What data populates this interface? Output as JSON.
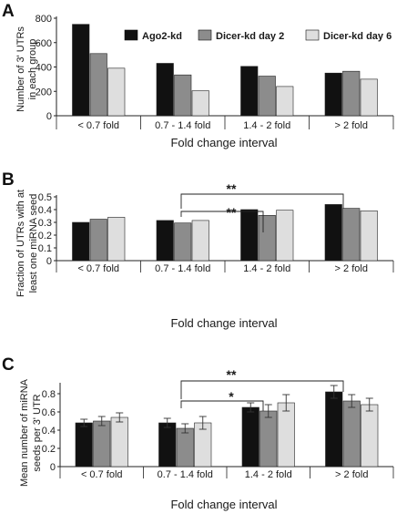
{
  "chart_data": [
    {
      "panel": "A",
      "type": "bar",
      "categories": [
        "< 0.7 fold",
        "0.7 - 1.4 fold",
        "1.4 - 2 fold",
        "> 2 fold"
      ],
      "series": [
        {
          "name": "Ago2-kd",
          "values": [
            750,
            430,
            405,
            350
          ],
          "color": "#111111"
        },
        {
          "name": "Dicer-kd day 2",
          "values": [
            510,
            335,
            325,
            365
          ],
          "color": "#8c8c8c"
        },
        {
          "name": "Dicer-kd day 6",
          "values": [
            390,
            205,
            240,
            300
          ],
          "color": "#dedede"
        }
      ],
      "xlabel": "Fold change interval",
      "ylabel": [
        "Number of 3' UTRs",
        "in each group"
      ],
      "ylim": [
        0,
        800
      ],
      "yticks": [
        "0",
        "200",
        "400",
        "600",
        "800"
      ],
      "legend": "top-right",
      "grid": false
    },
    {
      "panel": "B",
      "type": "bar",
      "categories": [
        "< 0.7 fold",
        "0.7 - 1.4 fold",
        "1.4 - 2 fold",
        "> 2 fold"
      ],
      "series": [
        {
          "name": "Ago2-kd",
          "values": [
            0.3,
            0.315,
            0.4,
            0.44
          ],
          "color": "#111111"
        },
        {
          "name": "Dicer-kd day 2",
          "values": [
            0.325,
            0.295,
            0.355,
            0.41
          ],
          "color": "#8c8c8c"
        },
        {
          "name": "Dicer-kd day 6",
          "values": [
            0.34,
            0.315,
            0.395,
            0.39
          ],
          "color": "#dedede"
        }
      ],
      "xlabel": "Fold change interval",
      "ylabel": [
        "Fraction of UTRs with at",
        "least one miRNA seed"
      ],
      "ylim": [
        0,
        0.5
      ],
      "yticks": [
        "0",
        "0.1",
        "0.2",
        "0.3",
        "0.4",
        "0.5"
      ],
      "annotations": [
        "**",
        "**"
      ],
      "grid": false
    },
    {
      "panel": "C",
      "type": "bar",
      "categories": [
        "< 0.7 fold",
        "0.7 - 1.4 fold",
        "1.4 - 2 fold",
        "> 2 fold"
      ],
      "series": [
        {
          "name": "Ago2-kd",
          "values": [
            0.48,
            0.48,
            0.65,
            0.82
          ],
          "errors": [
            0.04,
            0.05,
            0.05,
            0.07
          ],
          "color": "#111111"
        },
        {
          "name": "Dicer-kd day 2",
          "values": [
            0.5,
            0.42,
            0.61,
            0.72
          ],
          "errors": [
            0.05,
            0.05,
            0.07,
            0.07
          ],
          "color": "#8c8c8c"
        },
        {
          "name": "Dicer-kd day 6",
          "values": [
            0.54,
            0.48,
            0.7,
            0.68
          ],
          "errors": [
            0.05,
            0.07,
            0.09,
            0.07
          ],
          "color": "#dedede"
        }
      ],
      "xlabel": "Fold change interval",
      "ylabel": [
        "Mean number of miRNA",
        "seeds per 3' UTR"
      ],
      "ylim": [
        0,
        0.9
      ],
      "yticks": [
        "0",
        "0.2",
        "0.4",
        "0.6",
        "0.8"
      ],
      "annotations": [
        "**",
        "*"
      ],
      "grid": false
    }
  ],
  "panels": {
    "a": {
      "letter": "A",
      "xlabel": "Fold change interval",
      "ylabel1": "Number of 3' UTRs",
      "ylabel2": "in each group"
    },
    "b": {
      "letter": "B",
      "xlabel": "Fold change interval",
      "ylabel1": "Fraction of UTRs with at",
      "ylabel2": "least one miRNA seed",
      "sig1": "**",
      "sig2": "**"
    },
    "c": {
      "letter": "C",
      "xlabel": "Fold change interval",
      "ylabel1": "Mean number of miRNA",
      "ylabel2": "seeds per 3' UTR",
      "sig1": "**",
      "sig2": "*"
    }
  },
  "legend": {
    "items": [
      "Ago2-kd",
      "Dicer-kd day 2",
      "Dicer-kd day 6"
    ]
  }
}
